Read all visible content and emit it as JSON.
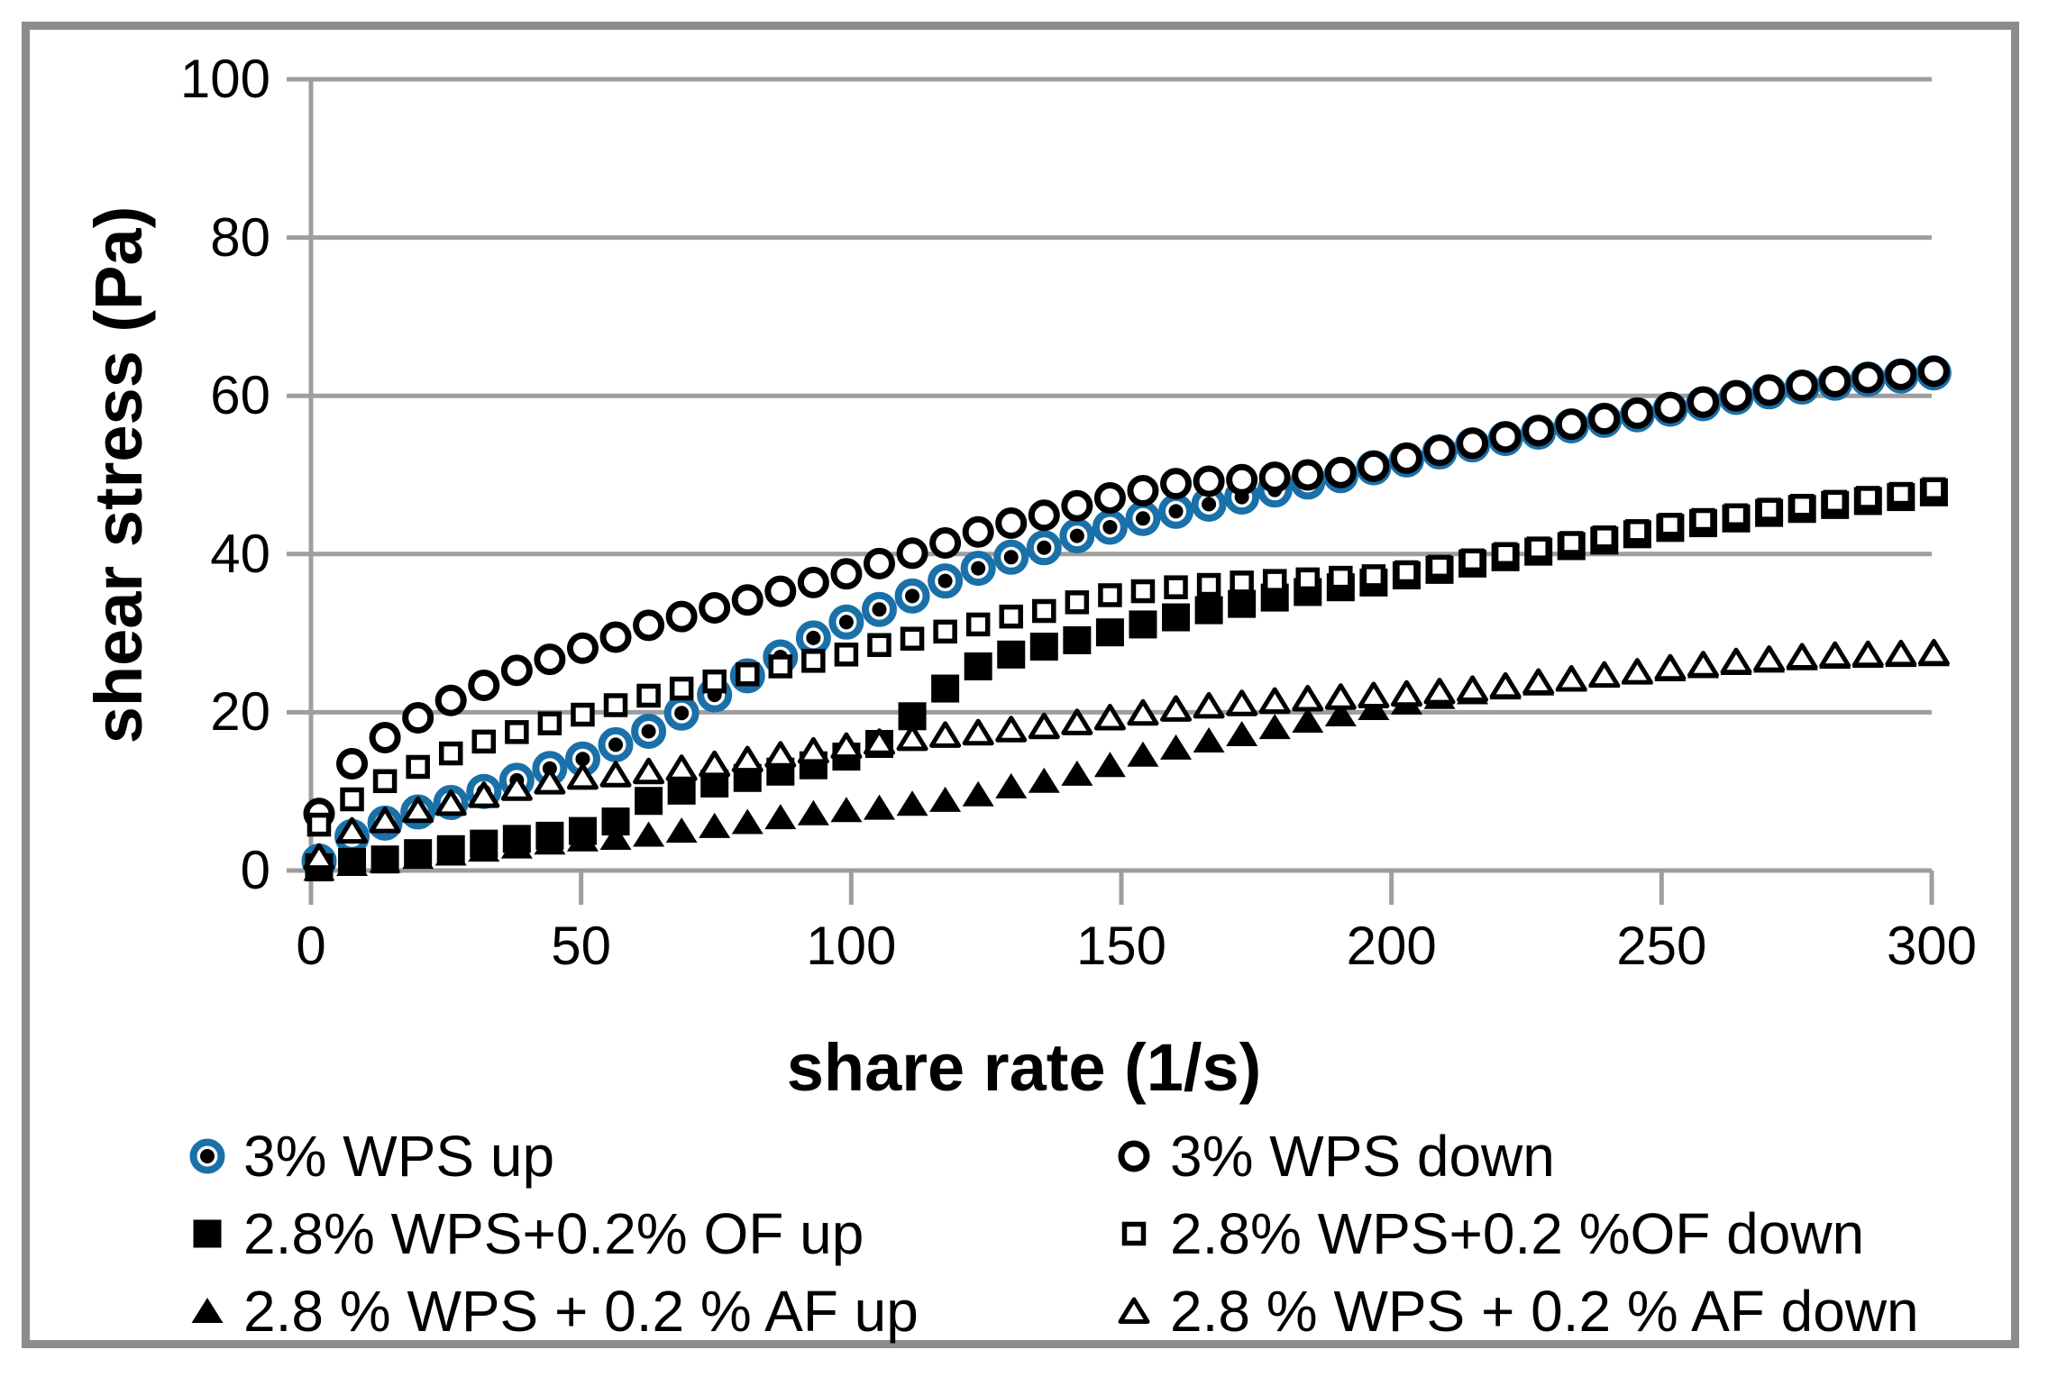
{
  "figure": {
    "background": "#ffffff",
    "border_color": "#8c8c8c",
    "grid_color": "#9e9e9e",
    "accent_blue": "#1a70a8",
    "marker_black": "#000000"
  },
  "chart_data": {
    "type": "scatter",
    "title": "",
    "xlabel": "share rate (1/s)",
    "ylabel": "shear stress (Pa)",
    "xlim": [
      0,
      300
    ],
    "ylim": [
      0,
      100
    ],
    "x_ticks": [
      0,
      50,
      100,
      150,
      200,
      250,
      300
    ],
    "y_ticks": [
      0,
      20,
      40,
      60,
      80,
      100
    ],
    "grid": "horizontal",
    "legend_position": "bottom-two-columns",
    "legend_columns": [
      [
        0,
        2,
        4
      ],
      [
        1,
        3,
        5
      ]
    ],
    "x": [
      1.5,
      7.6,
      13.7,
      19.8,
      25.9,
      32,
      38.1,
      44.2,
      50.3,
      56.4,
      62.5,
      68.6,
      74.7,
      80.8,
      86.9,
      93,
      99.1,
      105.2,
      111.3,
      117.4,
      123.5,
      129.6,
      135.7,
      141.8,
      147.9,
      154,
      160.1,
      166.2,
      172.3,
      178.4,
      184.5,
      190.6,
      196.7,
      202.8,
      208.9,
      215,
      221.1,
      227.2,
      233.3,
      239.4,
      245.5,
      251.6,
      257.7,
      263.8,
      269.9,
      276,
      282.1,
      288.2,
      294.3,
      300.4
    ],
    "series": [
      {
        "name": "3% WPS up",
        "marker": "circle-blue-filled",
        "values": [
          1.2,
          4.3,
          6.0,
          7.4,
          8.6,
          10.0,
          11.4,
          12.9,
          14.1,
          15.9,
          17.6,
          19.9,
          22.2,
          24.6,
          27.0,
          29.4,
          31.4,
          33.0,
          34.7,
          36.6,
          38.2,
          39.6,
          40.8,
          42.3,
          43.4,
          44.5,
          45.4,
          46.3,
          47.2,
          48.1,
          49.1,
          49.9,
          50.9,
          51.9,
          52.9,
          53.8,
          54.6,
          55.4,
          56.2,
          56.9,
          57.6,
          58.3,
          59.0,
          59.8,
          60.5,
          61.1,
          61.6,
          62.1,
          62.5,
          62.9
        ]
      },
      {
        "name": "3% WPS down",
        "marker": "circle-open",
        "values": [
          7.2,
          13.5,
          16.8,
          19.3,
          21.5,
          23.4,
          25.3,
          26.7,
          28.1,
          29.5,
          31.0,
          32.1,
          33.2,
          34.2,
          35.3,
          36.4,
          37.5,
          38.8,
          40.1,
          41.4,
          42.8,
          43.9,
          44.9,
          46.1,
          47.1,
          48.0,
          48.9,
          49.2,
          49.4,
          49.7,
          50.0,
          50.3,
          51.1,
          52.1,
          53.1,
          54.0,
          54.8,
          55.6,
          56.4,
          57.1,
          57.8,
          58.5,
          59.2,
          60.0,
          60.7,
          61.3,
          61.8,
          62.3,
          62.7,
          63.1
        ]
      },
      {
        "name": "2.8% WPS+0.2% OF up",
        "marker": "square-filled",
        "values": [
          0.4,
          1.1,
          1.4,
          2.2,
          2.7,
          3.4,
          4.0,
          4.4,
          5.0,
          6.2,
          8.8,
          10.1,
          11.0,
          11.7,
          12.5,
          13.3,
          14.4,
          16.0,
          19.5,
          23.0,
          25.8,
          27.3,
          28.3,
          29.1,
          30.1,
          31.1,
          32.0,
          32.9,
          33.7,
          34.5,
          35.2,
          35.8,
          36.4,
          37.3,
          38.0,
          38.8,
          39.6,
          40.3,
          41.0,
          41.7,
          42.5,
          43.3,
          43.9,
          44.5,
          45.2,
          45.7,
          46.2,
          46.7,
          47.2,
          47.8
        ]
      },
      {
        "name": "2.8% WPS+0.2 %OF down",
        "marker": "square-open",
        "values": [
          5.8,
          9.0,
          11.3,
          13.1,
          14.8,
          16.3,
          17.5,
          18.6,
          19.7,
          20.9,
          22.1,
          23.0,
          23.9,
          24.8,
          25.8,
          26.5,
          27.3,
          28.5,
          29.3,
          30.2,
          31.1,
          32.1,
          32.8,
          33.9,
          34.8,
          35.3,
          35.8,
          36.1,
          36.4,
          36.6,
          36.8,
          37.0,
          37.2,
          37.7,
          38.4,
          39.2,
          40.0,
          40.7,
          41.4,
          42.1,
          42.9,
          43.7,
          44.3,
          44.9,
          45.6,
          46.1,
          46.6,
          47.1,
          47.6,
          48.2
        ]
      },
      {
        "name": "2.8 % WPS + 0.2 % AF up",
        "marker": "triangle-filled",
        "values": [
          0.2,
          0.8,
          1.2,
          1.7,
          2.1,
          2.6,
          3.0,
          3.5,
          3.9,
          4.1,
          4.5,
          5.0,
          5.6,
          6.1,
          6.7,
          7.2,
          7.6,
          7.9,
          8.4,
          8.9,
          9.6,
          10.6,
          11.3,
          12.2,
          13.3,
          14.6,
          15.5,
          16.4,
          17.2,
          18.1,
          18.9,
          19.7,
          20.5,
          21.2,
          21.9,
          22.5,
          23.1,
          23.6,
          24.1,
          24.6,
          25.0,
          25.4,
          25.8,
          26.2,
          26.5,
          26.8,
          27.0,
          27.1,
          27.2,
          27.3
        ]
      },
      {
        "name": "2.8 % WPS + 0.2 % AF down",
        "marker": "triangle-open",
        "values": [
          1.7,
          5.0,
          6.3,
          7.6,
          8.5,
          9.5,
          10.4,
          11.2,
          11.8,
          12.1,
          12.5,
          12.9,
          13.4,
          14.0,
          14.6,
          15.1,
          15.7,
          16.2,
          16.7,
          17.1,
          17.4,
          17.8,
          18.2,
          18.7,
          19.3,
          19.9,
          20.4,
          20.8,
          21.1,
          21.4,
          21.7,
          21.9,
          22.1,
          22.3,
          22.6,
          22.9,
          23.3,
          23.8,
          24.2,
          24.7,
          25.1,
          25.6,
          26.0,
          26.4,
          26.7,
          27.0,
          27.2,
          27.3,
          27.4,
          27.5
        ]
      }
    ]
  }
}
